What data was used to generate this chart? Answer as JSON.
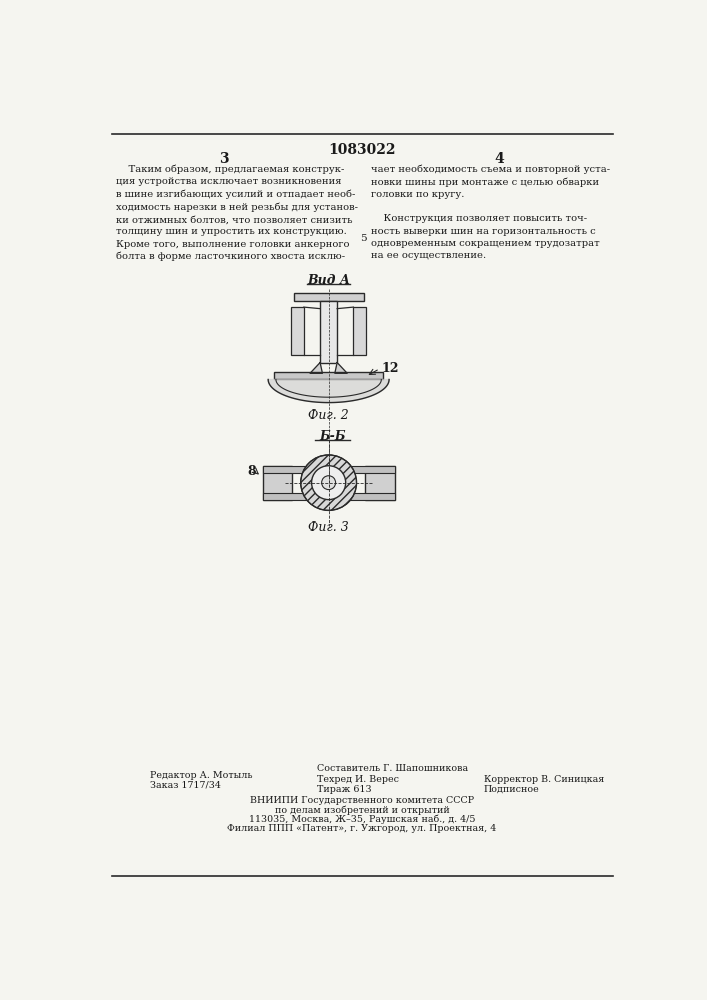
{
  "page_number_center": "1083022",
  "page_col_left": "3",
  "page_col_right": "4",
  "line_number_5": "5",
  "text_left": "    Таким образом, предлагаемая конструк-\nция устройства исключает возникновения\nв шине изгибающих усилий и отпадает необ-\nходимость нарезки в ней резьбы для установ-\nки отжимных болтов, что позволяет снизить\nтолщину шин и упростить их конструкцию.\nКроме того, выполнение головки анкерного\nболта в форме ласточкиного хвоста исклю-",
  "text_right": "чает необходимость съема и повторной уста-\nновки шины при монтаже с целью обварки\nголовки по кругу.\n\n    Конструкция позволяет повысить точ-\nность выверки шин на горизонтальность с\nодновременным сокращением трудозатрат\nна ее осуществление.",
  "vid_A_label": "Вид А",
  "fig2_label": "Фиг. 2",
  "fig3_label": "Фиг. 3",
  "section_bb_label": "Б-Б",
  "label_12": "12",
  "label_8": "8",
  "footer_left_line1": "Редактор А. Мотыль",
  "footer_left_line2": "Заказ 1717/34",
  "footer_center_line1": "Составитель Г. Шапошникова",
  "footer_center_line2": "Техред И. Верес",
  "footer_center_line3": "Тираж 613",
  "footer_right_line1": "Корректор В. Синицкая",
  "footer_right_line2": "Подписное",
  "footer_vnipi_line1": "ВНИИПИ Государственного комитета СССР",
  "footer_vnipi_line2": "по делам изобретений и открытий",
  "footer_vnipi_line3": "113035, Москва, Ж–35, Раушская наб., д. 4/5",
  "footer_vnipi_line4": "Филиал ППП «Патент», г. Ужгород, ул. Проектная, 4",
  "bg_color": "#f5f5f0",
  "text_color": "#1a1a1a",
  "line_color": "#2a2a2a",
  "fig_color": "#2a2a2a"
}
